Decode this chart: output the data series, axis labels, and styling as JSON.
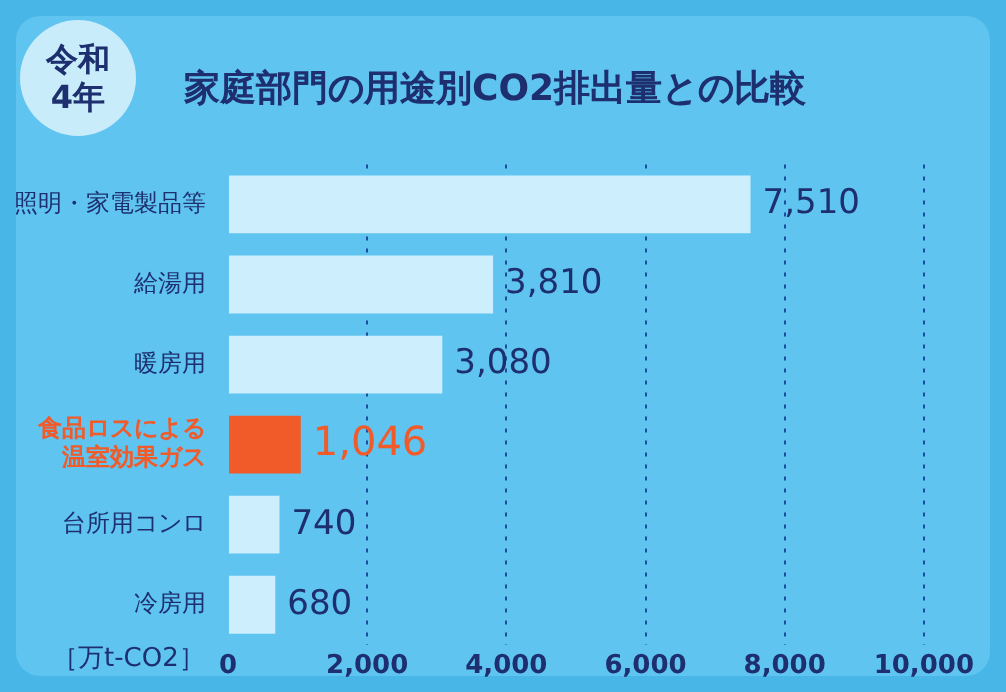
{
  "chart_data": {
    "type": "bar",
    "orientation": "horizontal",
    "title": "家庭部門の用途別CO2排出量との比較",
    "subtitle": "令和4年",
    "xlabel": "［万t-CO2］",
    "categories": [
      "照明・家電製品等",
      "給湯用",
      "暖房用",
      "食品ロスによる温室効果ガス",
      "台所用コンロ",
      "冷房用"
    ],
    "values": [
      7510,
      3810,
      3080,
      1046,
      740,
      680
    ],
    "colors": [
      "#cdeefc",
      "#cdeefc",
      "#cdeefc",
      "#f15a29",
      "#cdeefc",
      "#cdeefc"
    ],
    "value_labels": [
      "7,510",
      "3,810",
      "3,080",
      "1,046",
      "740",
      "680"
    ],
    "xlim": [
      0,
      10000
    ],
    "xticks": [
      0,
      {
        "value": 2000,
        "label": "2,000"
      },
      {
        "value": 4000,
        "label": "4,000"
      },
      {
        "value": 6000,
        "label": "6,000"
      },
      {
        "value": 8000,
        "label": "8,000"
      },
      {
        "value": 10000,
        "label": "10,000"
      }
    ],
    "grid": "x",
    "legend": false
  }
}
